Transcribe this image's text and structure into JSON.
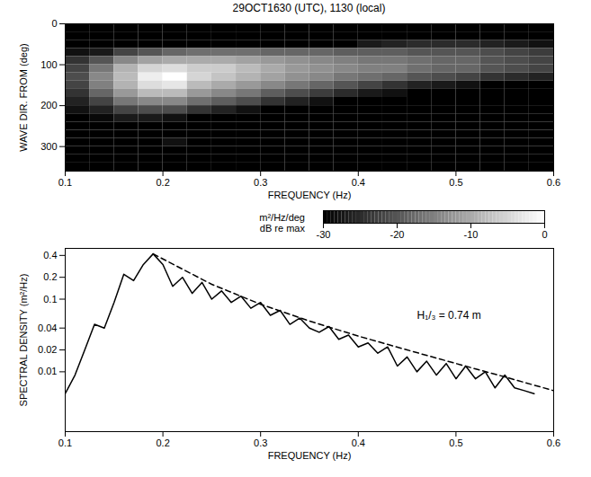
{
  "chart_data": [
    {
      "type": "heatmap",
      "title": "29OCT1630 (UTC), 1130 (local)",
      "x_label": "FREQUENCY (Hz)",
      "y_label": "WAVE DIR. FROM (deg)",
      "xlim": [
        0.1,
        0.6
      ],
      "xticks": [
        0.1,
        0.2,
        0.3,
        0.4,
        0.5,
        0.6
      ],
      "ylim": [
        0,
        360
      ],
      "yticks": [
        0,
        100,
        200,
        300
      ],
      "x_bins": [
        0.1,
        0.125,
        0.15,
        0.175,
        0.2,
        0.225,
        0.25,
        0.275,
        0.3,
        0.325,
        0.35,
        0.375,
        0.4,
        0.425,
        0.45,
        0.475,
        0.5,
        0.525,
        0.55,
        0.575,
        0.6
      ],
      "y_bins": [
        0,
        20,
        40,
        60,
        80,
        100,
        120,
        140,
        160,
        180,
        200,
        220,
        240,
        260,
        280,
        300,
        320,
        340,
        360
      ],
      "cells": [
        [
          -30,
          -30,
          -30,
          -30,
          -30,
          -30,
          -30,
          -30,
          -30,
          -30,
          -30,
          -30,
          -30,
          -30,
          -30,
          -30,
          -30,
          -30,
          -30,
          -30
        ],
        [
          -30,
          -30,
          -30,
          -30,
          -30,
          -30,
          -30,
          -30,
          -30,
          -30,
          -30,
          -30,
          -30,
          -30,
          -30,
          -30,
          -30,
          -30,
          -30,
          -30
        ],
        [
          -30,
          -30,
          -30,
          -30,
          -30,
          -30,
          -30,
          -30,
          -30,
          -30,
          -30,
          -30,
          -27,
          -26,
          -25,
          -25,
          -25,
          -26,
          -27,
          -28
        ],
        [
          -28,
          -27,
          -22,
          -20,
          -18,
          -17,
          -17,
          -17,
          -18,
          -18,
          -18,
          -19,
          -19,
          -19,
          -20,
          -20,
          -20,
          -21,
          -22,
          -23
        ],
        [
          -24,
          -20,
          -14,
          -11,
          -10,
          -10,
          -10,
          -11,
          -12,
          -13,
          -14,
          -15,
          -16,
          -16,
          -17,
          -18,
          -18,
          -20,
          -21,
          -22
        ],
        [
          -22,
          -16,
          -9,
          -5,
          -4,
          -6,
          -6,
          -8,
          -10,
          -12,
          -13,
          -14,
          -15,
          -15,
          -17,
          -18,
          -18,
          -20,
          -21,
          -22
        ],
        [
          -21,
          -14,
          -8,
          -2,
          0,
          -5,
          -7,
          -9,
          -11,
          -13,
          -14,
          -16,
          -17,
          -18,
          -20,
          -21,
          -22,
          -24,
          -25,
          -26
        ],
        [
          -22,
          -15,
          -9,
          -4,
          -3,
          -8,
          -10,
          -12,
          -14,
          -16,
          -18,
          -20,
          -22,
          -24,
          -26,
          -27,
          -28,
          -30,
          -30,
          -30
        ],
        [
          -24,
          -18,
          -12,
          -8,
          -8,
          -12,
          -14,
          -16,
          -19,
          -21,
          -23,
          -25,
          -27,
          -28,
          -30,
          -30,
          -30,
          -30,
          -30,
          -30
        ],
        [
          -26,
          -22,
          -16,
          -14,
          -14,
          -17,
          -19,
          -21,
          -24,
          -26,
          -28,
          -30,
          -30,
          -30,
          -30,
          -30,
          -30,
          -30,
          -30,
          -30
        ],
        [
          -28,
          -26,
          -22,
          -21,
          -21,
          -24,
          -26,
          -28,
          -30,
          -30,
          -30,
          -30,
          -30,
          -30,
          -30,
          -30,
          -30,
          -30,
          -30,
          -30
        ],
        [
          -30,
          -29,
          -27,
          -27,
          -28,
          -30,
          -30,
          -30,
          -30,
          -30,
          -30,
          -30,
          -30,
          -30,
          -30,
          -30,
          -30,
          -30,
          -30,
          -30
        ],
        [
          -30,
          -30,
          -30,
          -30,
          -30,
          -30,
          -30,
          -30,
          -30,
          -30,
          -30,
          -30,
          -30,
          -30,
          -30,
          -30,
          -30,
          -30,
          -30,
          -30
        ],
        [
          -30,
          -30,
          -30,
          -30,
          -30,
          -30,
          -30,
          -30,
          -30,
          -30,
          -30,
          -30,
          -30,
          -30,
          -30,
          -30,
          -30,
          -30,
          -30,
          -30
        ],
        [
          -30,
          -30,
          -30,
          -30,
          -28,
          -30,
          -30,
          -30,
          -30,
          -30,
          -30,
          -30,
          -30,
          -30,
          -30,
          -30,
          -30,
          -30,
          -30,
          -30
        ],
        [
          -30,
          -30,
          -30,
          -30,
          -30,
          -30,
          -30,
          -30,
          -30,
          -30,
          -30,
          -30,
          -30,
          -30,
          -30,
          -30,
          -30,
          -30,
          -30,
          -30
        ],
        [
          -30,
          -30,
          -30,
          -30,
          -30,
          -30,
          -30,
          -30,
          -30,
          -30,
          -30,
          -30,
          -30,
          -30,
          -30,
          -30,
          -30,
          -30,
          -30,
          -30
        ],
        [
          -30,
          -30,
          -30,
          -30,
          -30,
          -30,
          -30,
          -30,
          -30,
          -30,
          -30,
          -30,
          -30,
          -30,
          -30,
          -30,
          -30,
          -30,
          -30,
          -30
        ]
      ],
      "colorbar": {
        "label": [
          "m²/Hz/deg",
          "dB re max"
        ],
        "range": [
          -30,
          0
        ],
        "ticks": [
          -30,
          -20,
          -10,
          0
        ]
      }
    },
    {
      "type": "line",
      "x_label": "FREQUENCY (Hz)",
      "y_label": "SPECTRAL DENSITY (m²/Hz)",
      "log": "y",
      "xlim": [
        0.1,
        0.6
      ],
      "xticks": [
        0.1,
        0.2,
        0.3,
        0.4,
        0.5,
        0.6
      ],
      "ylim": [
        0.0015,
        0.5
      ],
      "yticks": [
        0.01,
        0.02,
        0.04,
        0.1,
        0.2,
        0.4
      ],
      "series": [
        {
          "color": "black",
          "line_style": "solid",
          "x": [
            0.1,
            0.11,
            0.12,
            0.13,
            0.14,
            0.15,
            0.16,
            0.17,
            0.18,
            0.19,
            0.2,
            0.21,
            0.22,
            0.23,
            0.24,
            0.25,
            0.26,
            0.27,
            0.28,
            0.29,
            0.3,
            0.31,
            0.32,
            0.33,
            0.34,
            0.35,
            0.36,
            0.37,
            0.38,
            0.39,
            0.4,
            0.41,
            0.42,
            0.43,
            0.44,
            0.45,
            0.46,
            0.47,
            0.48,
            0.49,
            0.5,
            0.51,
            0.52,
            0.53,
            0.54,
            0.55,
            0.56,
            0.57,
            0.58
          ],
          "values": [
            0.005,
            0.009,
            0.02,
            0.045,
            0.04,
            0.09,
            0.22,
            0.18,
            0.3,
            0.42,
            0.3,
            0.15,
            0.2,
            0.12,
            0.17,
            0.1,
            0.13,
            0.09,
            0.11,
            0.075,
            0.09,
            0.06,
            0.07,
            0.045,
            0.055,
            0.04,
            0.035,
            0.042,
            0.028,
            0.032,
            0.022,
            0.025,
            0.018,
            0.022,
            0.012,
            0.016,
            0.01,
            0.014,
            0.009,
            0.013,
            0.008,
            0.012,
            0.008,
            0.01,
            0.006,
            0.009,
            0.006,
            0.0055,
            0.005
          ]
        },
        {
          "color": "black",
          "line_style": "dashed",
          "x": [
            0.19,
            0.25,
            0.3,
            0.35,
            0.4,
            0.45,
            0.5,
            0.55,
            0.6
          ],
          "values": [
            0.42,
            0.16,
            0.085,
            0.05,
            0.031,
            0.02,
            0.013,
            0.0085,
            0.0055
          ]
        }
      ],
      "annotations": [
        {
          "text": "H₁/₃ = 0.74 m",
          "x": 0.46,
          "y": 0.06
        }
      ]
    }
  ]
}
